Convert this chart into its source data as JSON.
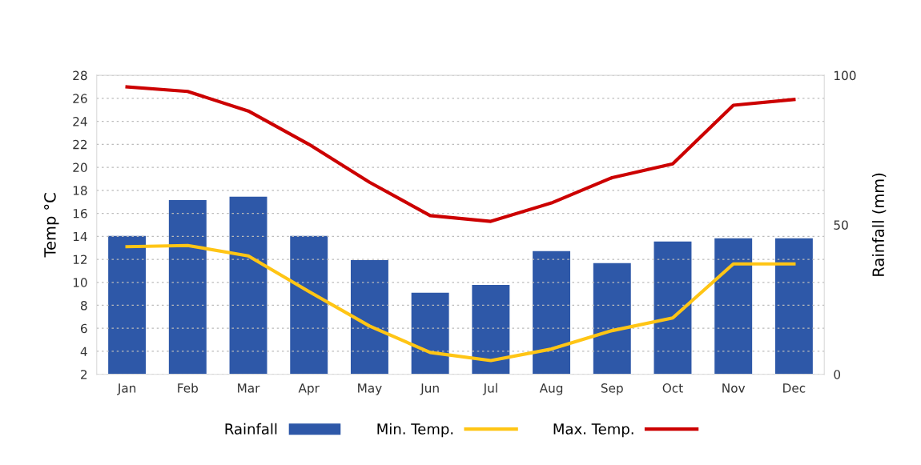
{
  "chart_data": {
    "type": "bar",
    "categories": [
      "Jan",
      "Feb",
      "Mar",
      "Apr",
      "May",
      "Jun",
      "Jul",
      "Aug",
      "Sep",
      "Oct",
      "Nov",
      "Dec"
    ],
    "series": [
      {
        "name": "Rainfall",
        "axis": "y2",
        "color": "#2e58a8",
        "values": [
          46.3,
          58.3,
          59.4,
          46.3,
          38.2,
          27.3,
          29.9,
          41.2,
          37.2,
          44.4,
          45.5,
          45.5
        ]
      },
      {
        "name": "Min. Temp.",
        "type": "line",
        "color": "#ffc515",
        "values": [
          13.1,
          13.2,
          12.3,
          9.2,
          6.2,
          3.9,
          3.2,
          4.2,
          5.8,
          6.9,
          11.6,
          11.6
        ]
      },
      {
        "name": "Max. Temp.",
        "type": "line",
        "color": "#cc0000",
        "values": [
          27.0,
          26.6,
          24.9,
          22.0,
          18.7,
          15.8,
          15.3,
          16.9,
          19.1,
          20.3,
          25.4,
          25.9
        ]
      }
    ],
    "ylabel": "Temp °C",
    "y2label": "Rainfall (mm)",
    "ylim": [
      2,
      28
    ],
    "yticks": [
      2,
      4,
      6,
      8,
      10,
      12,
      14,
      16,
      18,
      20,
      22,
      24,
      26,
      28
    ],
    "y2lim": [
      0,
      100
    ],
    "y2ticks": [
      0,
      50,
      100
    ],
    "grid": "y",
    "legend": "bottom",
    "marker": "none",
    "line_style": "solid"
  }
}
